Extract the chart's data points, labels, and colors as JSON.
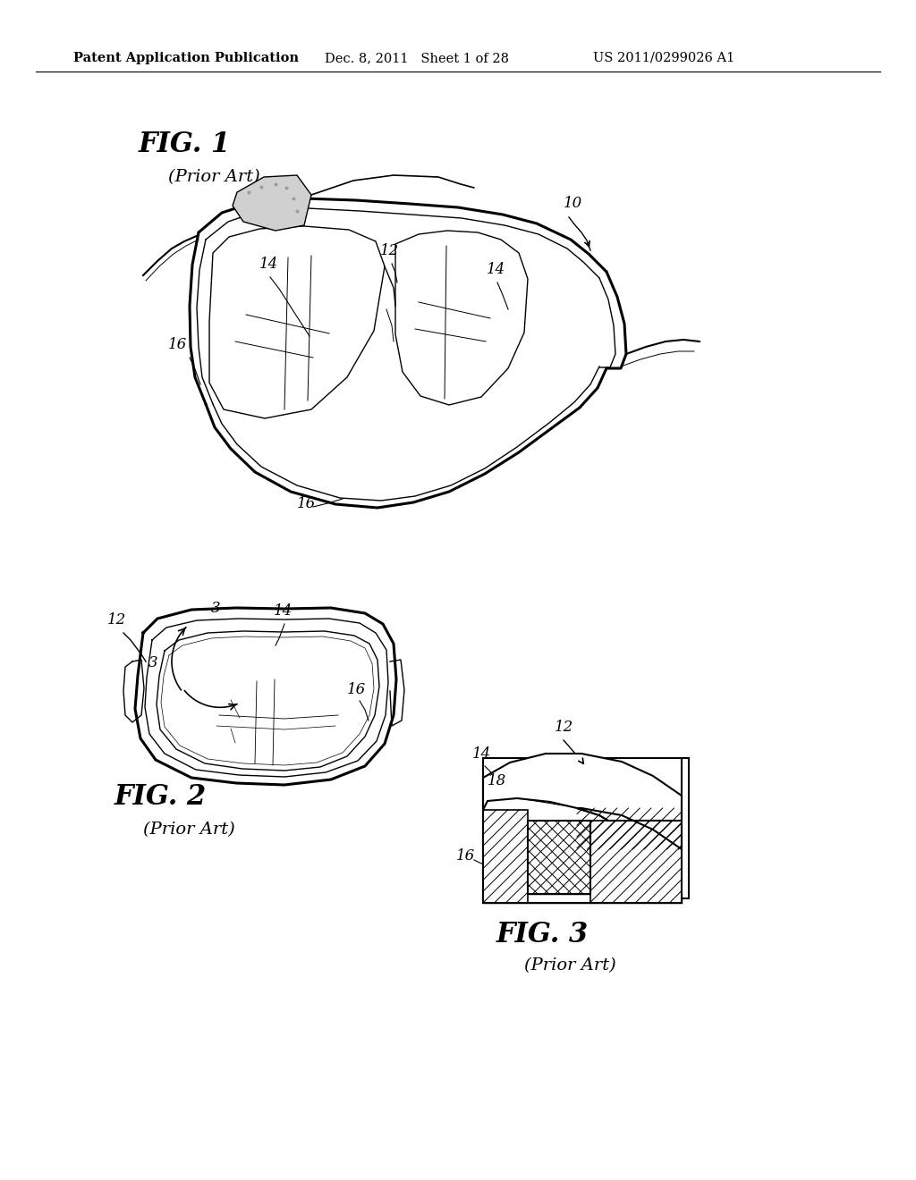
{
  "bg_color": "#ffffff",
  "header_pub": "Patent Application Publication",
  "header_date": "Dec. 8, 2011",
  "header_sheet": "Sheet 1 of 28",
  "header_patent": "US 2011/0299026 A1",
  "fig1_label": "FIG. 1",
  "fig1_sub": "(Prior Art)",
  "fig2_label": "FIG. 2",
  "fig2_sub": "(Prior Art)",
  "fig3_label": "FIG. 3",
  "fig3_sub": "(Prior Art)",
  "line_color": "#000000"
}
